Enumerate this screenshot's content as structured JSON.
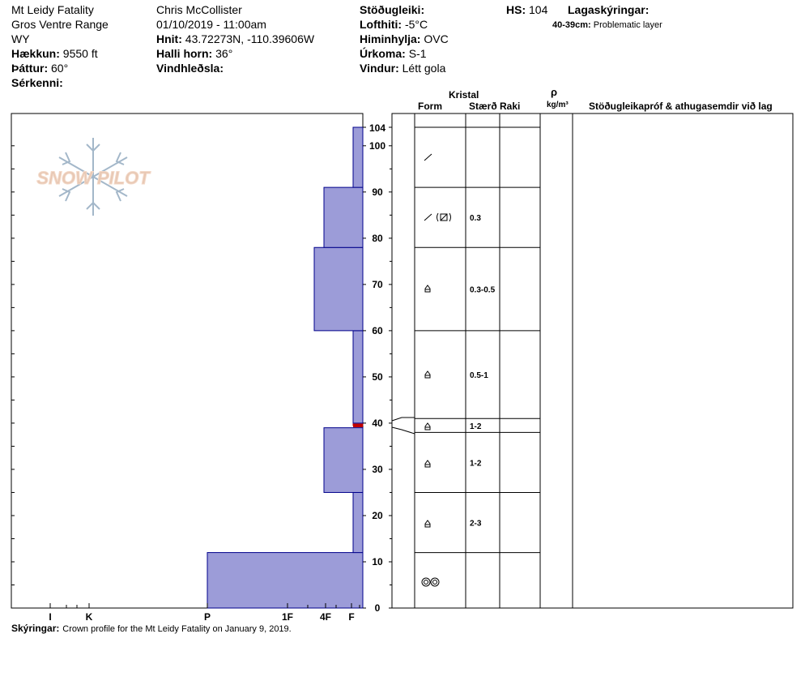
{
  "header": {
    "title": "Mt Leidy Fatality",
    "range": "Gros Ventre Range",
    "state": "WY",
    "elevation_label": "Hækkun:",
    "elevation_value": "9550 ft",
    "aspect_label": "Þáttur:",
    "aspect_value": "60°",
    "features_label": "Sérkenni:",
    "observer": "Chris McCollister",
    "datetime": "01/10/2019 - 11:00am",
    "coords_label": "Hnit:",
    "coords_value": "43.72273N, -110.39606W",
    "slope_label": "Halli horn:",
    "slope_value": "36°",
    "wind_loading_label": "Vindhleðsla:",
    "stability_label": "Stöðugleiki:",
    "air_temp_label": "Lofthiti:",
    "air_temp_value": "-5°C",
    "sky_label": "Himinhylja:",
    "sky_value": "OVC",
    "precip_label": "Úrkoma:",
    "precip_value": "S-1",
    "wind_label": "Vindur:",
    "wind_value": "Létt gola",
    "hs_label": "HS:",
    "hs_value": "104",
    "legend_label": "Lagaskýringar:",
    "legend_range": "40-39cm:",
    "legend_text": "Problematic layer"
  },
  "table_headers": {
    "kristal": "Kristal",
    "form": "Form",
    "size": "Stærð",
    "moisture": "Raki",
    "rho": "ρ",
    "density_unit": "kg/m³",
    "tests": "Stöðugleikapróf & athugasemdir við lag"
  },
  "logo_text": "SNOW PILOT",
  "footer": {
    "label": "Skýringar:",
    "text": "Crown profile for the Mt Leidy Fatality on January 9, 2019."
  },
  "chart_data": {
    "type": "snow_profile",
    "height_axis": {
      "min": 0,
      "max": 104,
      "ticks": [
        0,
        10,
        20,
        30,
        40,
        50,
        60,
        70,
        80,
        90,
        100,
        104
      ]
    },
    "hardness_axis": {
      "ticks": [
        "I",
        "K",
        "P",
        "1F",
        "4F",
        "F"
      ]
    },
    "hardness_profile": [
      {
        "from": 0,
        "to": 12,
        "hardness": "P"
      },
      {
        "from": 12,
        "to": 25,
        "hardness": "F+"
      },
      {
        "from": 25,
        "to": 39,
        "hardness": "4F-"
      },
      {
        "from": 39,
        "to": 40,
        "hardness": "F",
        "problematic": true
      },
      {
        "from": 40,
        "to": 60,
        "hardness": "F+"
      },
      {
        "from": 60,
        "to": 78,
        "hardness": "4F"
      },
      {
        "from": 78,
        "to": 91,
        "hardness": "4F-"
      },
      {
        "from": 91,
        "to": 104,
        "hardness": "F+"
      }
    ],
    "layers": [
      {
        "from": 91,
        "to": 104,
        "grain": "decomposing fragments",
        "size": ""
      },
      {
        "from": 78,
        "to": 91,
        "grain": "decomposing fragments / faceted",
        "size": "0.3"
      },
      {
        "from": 60,
        "to": 78,
        "grain": "depth hoar",
        "size": "0.3-0.5"
      },
      {
        "from": 41,
        "to": 60,
        "grain": "depth hoar",
        "size": "0.5-1"
      },
      {
        "from": 38,
        "to": 41,
        "grain": "depth hoar",
        "size": "1-2"
      },
      {
        "from": 25,
        "to": 38,
        "grain": "depth hoar",
        "size": "1-2"
      },
      {
        "from": 12,
        "to": 25,
        "grain": "depth hoar",
        "size": "2-3"
      },
      {
        "from": 0,
        "to": 12,
        "grain": "melt forms",
        "size": ""
      }
    ]
  }
}
